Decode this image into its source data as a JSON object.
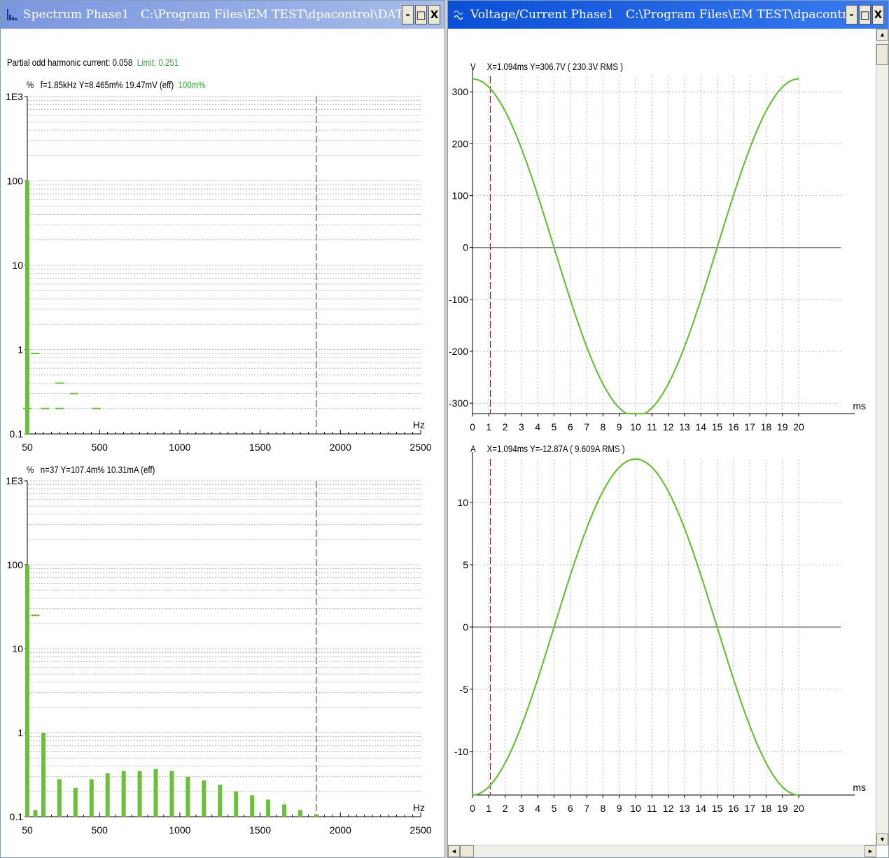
{
  "left_window": {
    "title": "Spectrum Phase1",
    "path": "C:\\Program Files\\EM TEST\\dpacontrol\\DATA\\shouhang.rs...",
    "buttons": {
      "minimize": "-",
      "maximize": "□",
      "close": "X"
    },
    "summary_label": "Partial odd harmonic current: 0.058",
    "limit_label": "Limit: 0.251",
    "top_chart": {
      "unit": "%",
      "readout": "f=1.85kHz  Y=8.465m%  19.47mV (eff)",
      "readout_green": "100m%",
      "x_unit": "Hz"
    },
    "bottom_chart": {
      "unit": "%",
      "readout": "n=37  Y=107.4m%  10.31mA (eff)",
      "x_unit": "Hz"
    }
  },
  "right_window": {
    "title": "Voltage/Current Phase1",
    "path": "C:\\Program Files\\EM TEST\\dpacontrol\\DATA\\shou...",
    "buttons": {
      "minimize": "-",
      "maximize": "□",
      "close": "X"
    },
    "voltage_chart": {
      "unit": "V",
      "readout": "X=1.094ms  Y=306.7V  ( 230.3V RMS )",
      "x_unit": "ms"
    },
    "current_chart": {
      "unit": "A",
      "readout": "X=1.094ms  Y=-12.87A  ( 9.609A RMS )",
      "x_unit": "ms"
    }
  },
  "colors": {
    "trace": "#6cbf3a",
    "cursor": "#8b1a1a",
    "grid": "#b8b8b8",
    "zero": "#808080"
  },
  "chart_data": [
    {
      "type": "bar",
      "name": "spectrum-top",
      "x_ticks": [
        "50",
        "500",
        "1000",
        "1500",
        "2000",
        "2500"
      ],
      "y_ticks": [
        "1E3",
        "100",
        "10",
        "1",
        "0.1"
      ],
      "log_y": true,
      "xlim": [
        50,
        2500
      ],
      "ylim": [
        0.1,
        1000
      ],
      "cursor_x": 1850,
      "bars": [
        [
          50,
          100
        ]
      ],
      "limit_segments": [
        [
          100,
          0.9
        ],
        [
          50,
          0.2
        ],
        [
          160,
          0.2
        ],
        [
          250,
          0.4
        ],
        [
          340,
          0.3
        ],
        [
          250,
          0.2
        ],
        [
          480,
          0.2
        ]
      ]
    },
    {
      "type": "bar",
      "name": "spectrum-bottom",
      "x_ticks": [
        "50",
        "500",
        "1000",
        "1500",
        "2000",
        "2500"
      ],
      "y_ticks": [
        "1E3",
        "100",
        "10",
        "1",
        "0.1"
      ],
      "log_y": true,
      "xlim": [
        50,
        2500
      ],
      "ylim": [
        0.1,
        1000
      ],
      "cursor_x": 1850,
      "bars": [
        [
          50,
          100
        ],
        [
          100,
          0.12
        ],
        [
          150,
          1.0
        ],
        [
          250,
          0.28
        ],
        [
          350,
          0.22
        ],
        [
          450,
          0.28
        ],
        [
          550,
          0.33
        ],
        [
          650,
          0.35
        ],
        [
          750,
          0.35
        ],
        [
          850,
          0.37
        ],
        [
          950,
          0.35
        ],
        [
          1050,
          0.3
        ],
        [
          1150,
          0.27
        ],
        [
          1250,
          0.24
        ],
        [
          1350,
          0.2
        ],
        [
          1450,
          0.18
        ],
        [
          1550,
          0.16
        ],
        [
          1650,
          0.14
        ],
        [
          1750,
          0.12
        ],
        [
          1850,
          0.107
        ]
      ],
      "limit_segments": [
        [
          100,
          25
        ]
      ]
    },
    {
      "type": "line",
      "name": "voltage",
      "x_ticks": [
        "0",
        "1",
        "2",
        "3",
        "4",
        "5",
        "6",
        "7",
        "8",
        "9",
        "10",
        "11",
        "12",
        "13",
        "14",
        "15",
        "16",
        "17",
        "18",
        "19",
        "20"
      ],
      "y_ticks": [
        "300",
        "200",
        "100",
        "0",
        "-100",
        "-200",
        "-300"
      ],
      "xlim": [
        0,
        20
      ],
      "ylim": [
        -320,
        330
      ],
      "cursor_x": 1.094,
      "amplitude": 325,
      "period_ms": 20,
      "phase": "cos"
    },
    {
      "type": "line",
      "name": "current",
      "x_ticks": [
        "0",
        "1",
        "2",
        "3",
        "4",
        "5",
        "6",
        "7",
        "8",
        "9",
        "10",
        "11",
        "12",
        "13",
        "14",
        "15",
        "16",
        "17",
        "18",
        "19",
        "20"
      ],
      "y_ticks": [
        "10",
        "5",
        "0",
        "-5",
        "-10"
      ],
      "xlim": [
        0,
        20
      ],
      "ylim": [
        -13.5,
        13.5
      ],
      "cursor_x": 1.094,
      "amplitude": 13.5,
      "period_ms": 20,
      "phase": "-cos"
    }
  ]
}
